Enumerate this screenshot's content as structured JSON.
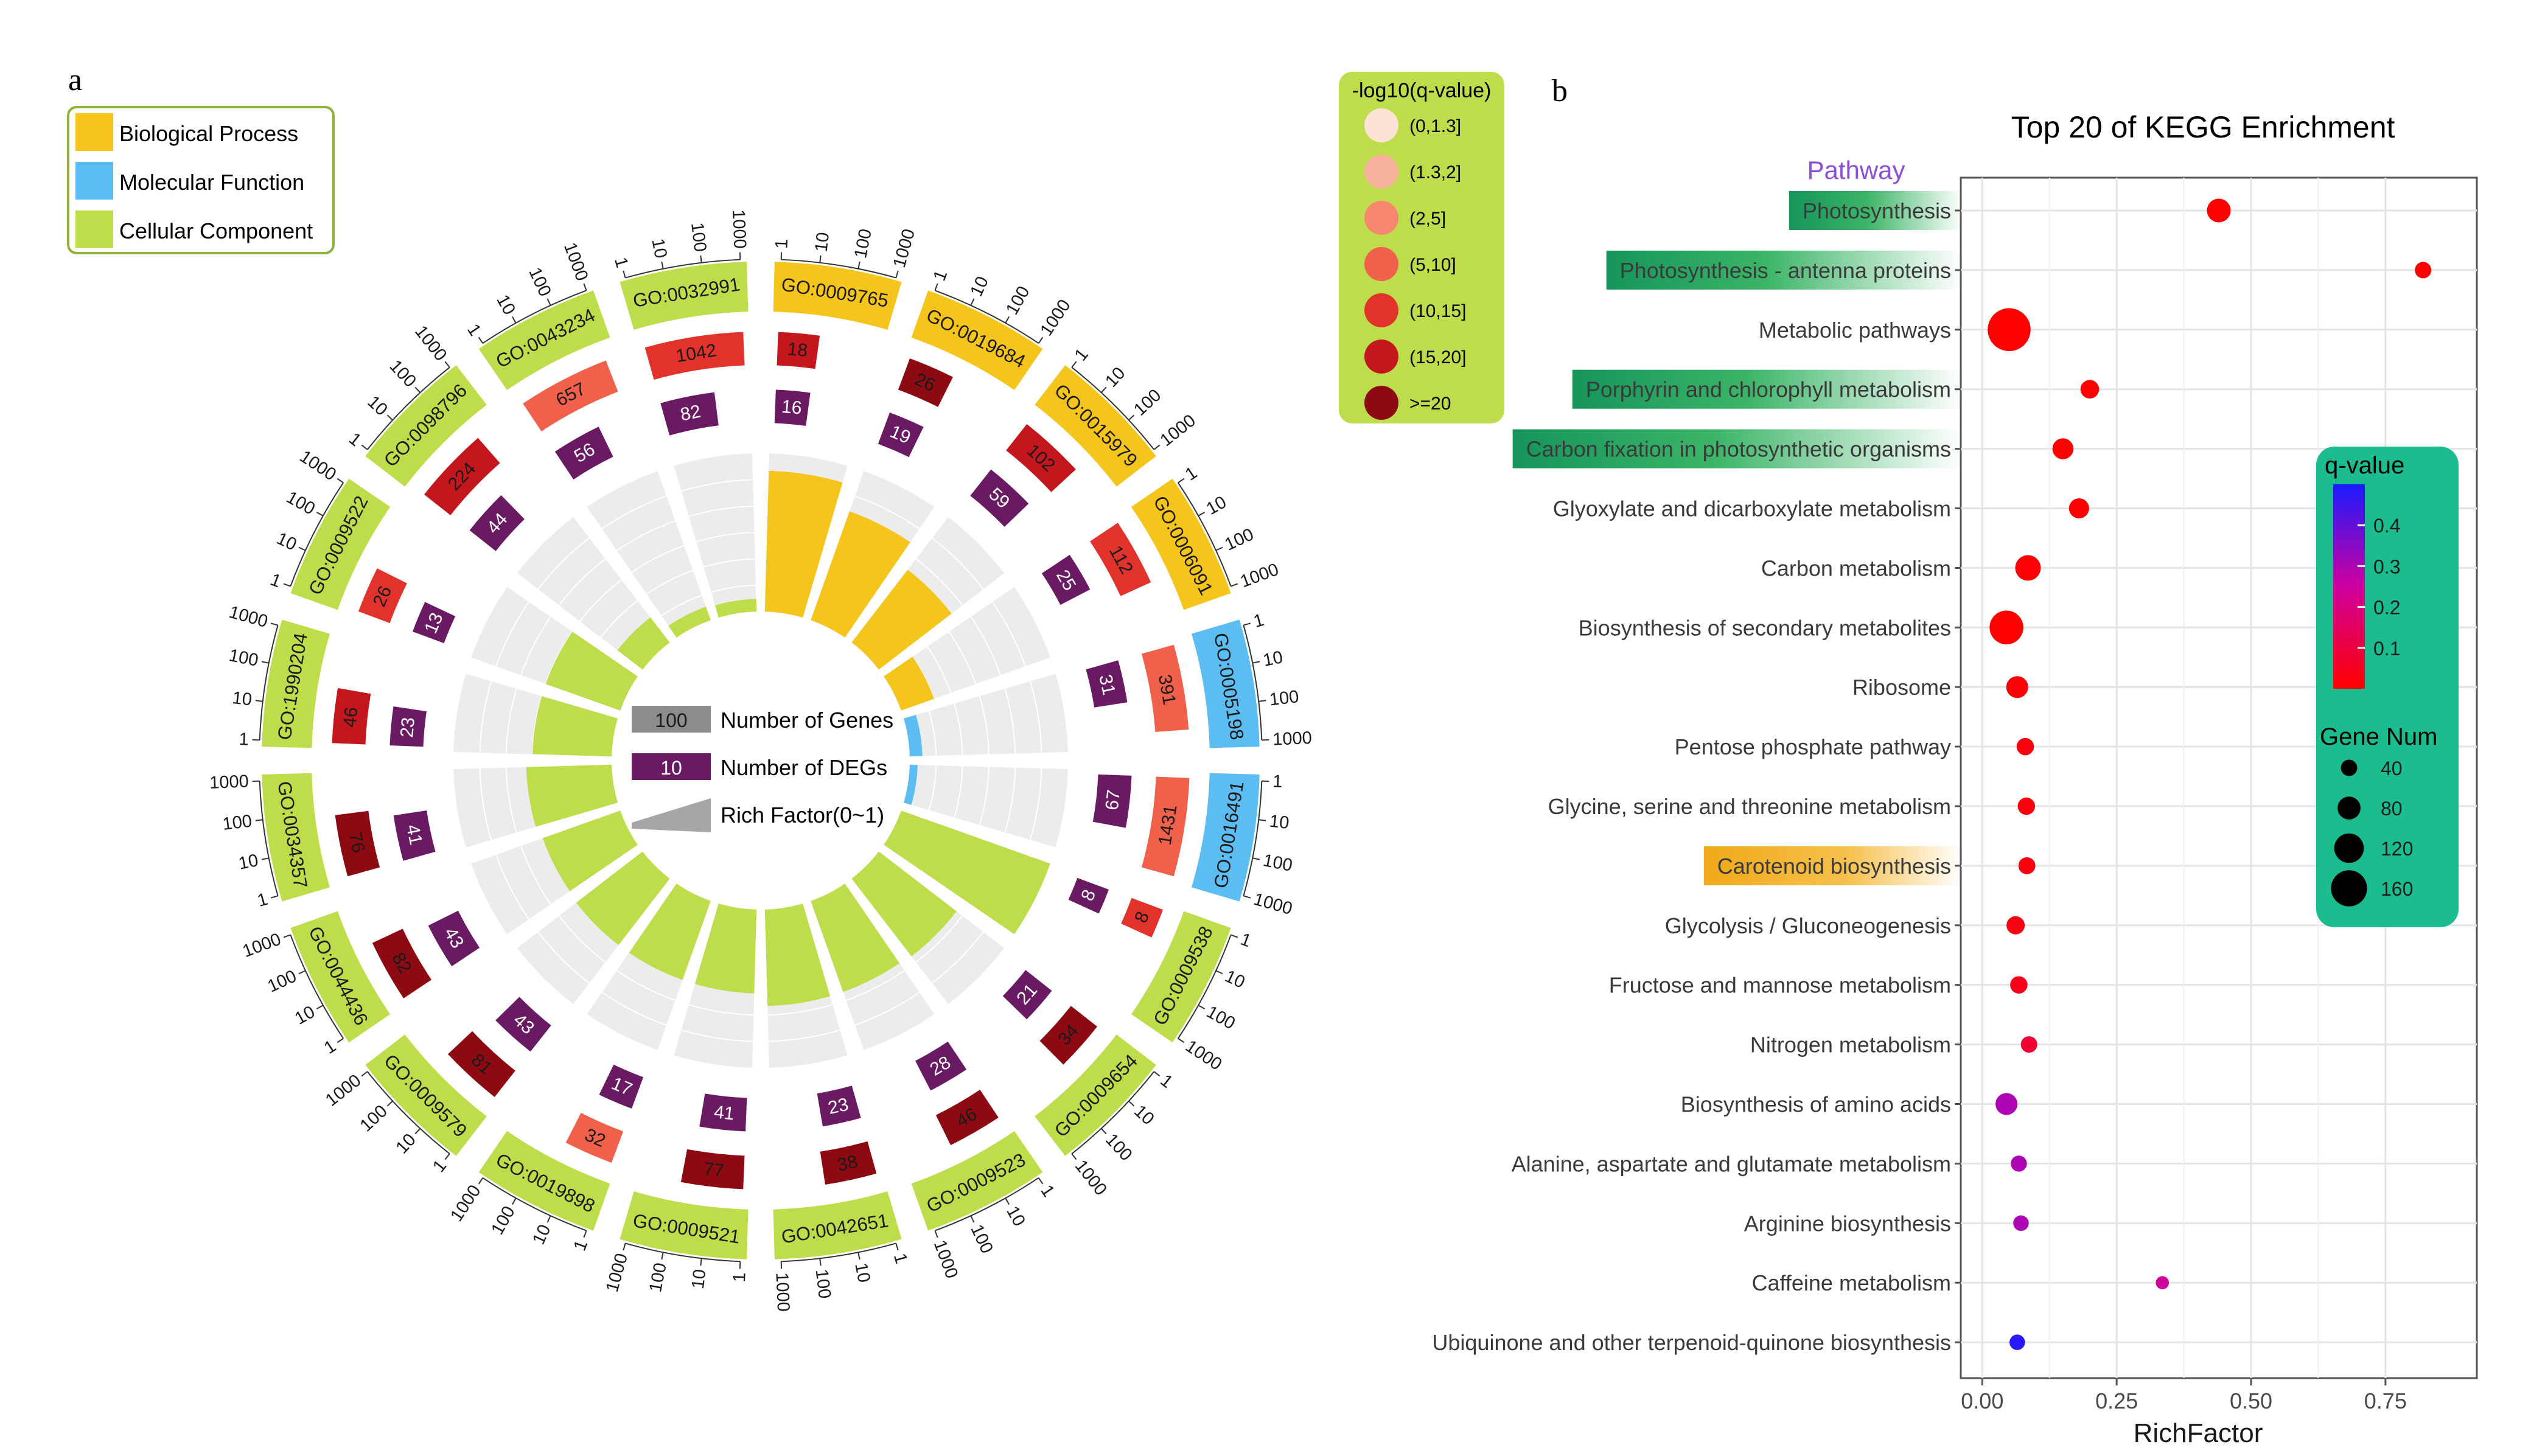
{
  "panel_a": {
    "letter": "a",
    "category_legend": [
      {
        "label": "Biological Process",
        "color": "#f6c51b"
      },
      {
        "label": "Molecular Function",
        "color": "#5bbdf2"
      },
      {
        "label": "Cellular Component",
        "color": "#bedd4b"
      }
    ],
    "center_legend": [
      {
        "sample": "100",
        "label": "Number of Genes"
      },
      {
        "sample": "10",
        "label": "Number of DEGs"
      },
      {
        "sample": "",
        "label": "Rich Factor(0~1)"
      }
    ],
    "qvalue_legend": {
      "title": "-log10(q-value)",
      "bins": [
        {
          "label": "(0,1.3]",
          "color": "#fce3d6"
        },
        {
          "label": "(1.3,2]",
          "color": "#f9b39c"
        },
        {
          "label": "(2,5]",
          "color": "#f7876f"
        },
        {
          "label": "(5,10]",
          "color": "#f1604b"
        },
        {
          "label": "(10,15]",
          "color": "#e1322c"
        },
        {
          "label": "(15,20]",
          "color": "#c3161d"
        },
        {
          "label": ">=20",
          "color": "#8e0a12"
        }
      ]
    },
    "axis_ticks": [
      "1",
      "10",
      "100",
      "1000"
    ],
    "deg_color": "#6a1a63",
    "chart_data": {
      "type": "circular_bar",
      "terms": [
        {
          "id": "GO:0009765",
          "category": "Biological Process",
          "genes": 18,
          "gene_color": "#c3161d",
          "degs": 16,
          "rich_factor": 0.89
        },
        {
          "id": "GO:0019684",
          "category": "Biological Process",
          "genes": 26,
          "gene_color": "#8e0a12",
          "degs": 19,
          "rich_factor": 0.73
        },
        {
          "id": "GO:0015979",
          "category": "Biological Process",
          "genes": 102,
          "gene_color": "#c3161d",
          "degs": 59,
          "rich_factor": 0.58
        },
        {
          "id": "GO:0006091",
          "category": "Biological Process",
          "genes": 112,
          "gene_color": "#e1322c",
          "degs": 25,
          "rich_factor": 0.22
        },
        {
          "id": "GO:0005198",
          "category": "Molecular Function",
          "genes": 391,
          "gene_color": "#f1604b",
          "degs": 31,
          "rich_factor": 0.08
        },
        {
          "id": "GO:0016491",
          "category": "Molecular Function",
          "genes": 1431,
          "gene_color": "#f1604b",
          "degs": 67,
          "rich_factor": 0.05
        },
        {
          "id": "GO:0009538",
          "category": "Cellular Component",
          "genes": 8,
          "gene_color": "#e1322c",
          "degs": 8,
          "rich_factor": 1.0
        },
        {
          "id": "GO:0009654",
          "category": "Cellular Component",
          "genes": 34,
          "gene_color": "#8e0a12",
          "degs": 21,
          "rich_factor": 0.62
        },
        {
          "id": "GO:0009523",
          "category": "Cellular Component",
          "genes": 46,
          "gene_color": "#8e0a12",
          "degs": 28,
          "rich_factor": 0.61
        },
        {
          "id": "GO:0042651",
          "category": "Cellular Component",
          "genes": 38,
          "gene_color": "#8e0a12",
          "degs": 23,
          "rich_factor": 0.61
        },
        {
          "id": "GO:0009521",
          "category": "Cellular Component",
          "genes": 77,
          "gene_color": "#8e0a12",
          "degs": 41,
          "rich_factor": 0.53
        },
        {
          "id": "GO:0019898",
          "category": "Cellular Component",
          "genes": 32,
          "gene_color": "#f1604b",
          "degs": 17,
          "rich_factor": 0.53
        },
        {
          "id": "GO:0009579",
          "category": "Cellular Component",
          "genes": 81,
          "gene_color": "#8e0a12",
          "degs": 43,
          "rich_factor": 0.53
        },
        {
          "id": "GO:0044436",
          "category": "Cellular Component",
          "genes": 82,
          "gene_color": "#8e0a12",
          "degs": 43,
          "rich_factor": 0.52
        },
        {
          "id": "GO:0034357",
          "category": "Cellular Component",
          "genes": 76,
          "gene_color": "#8e0a12",
          "degs": 41,
          "rich_factor": 0.54
        },
        {
          "id": "GO:1990204",
          "category": "Cellular Component",
          "genes": 46,
          "gene_color": "#c3161d",
          "degs": 23,
          "rich_factor": 0.5
        },
        {
          "id": "GO:0009522",
          "category": "Cellular Component",
          "genes": 26,
          "gene_color": "#e1322c",
          "degs": 13,
          "rich_factor": 0.5
        },
        {
          "id": "GO:0098796",
          "category": "Cellular Component",
          "genes": 224,
          "gene_color": "#c3161d",
          "degs": 44,
          "rich_factor": 0.2
        },
        {
          "id": "GO:0043234",
          "category": "Cellular Component",
          "genes": 657,
          "gene_color": "#f1604b",
          "degs": 56,
          "rich_factor": 0.09
        },
        {
          "id": "GO:0032991",
          "category": "Cellular Component",
          "genes": 1042,
          "gene_color": "#e1322c",
          "degs": 82,
          "rich_factor": 0.08
        }
      ]
    }
  },
  "panel_b": {
    "letter": "b",
    "chart_data": {
      "type": "scatter",
      "title": "Top 20 of KEGG Enrichment",
      "xlabel": "RichFactor",
      "ylabel": "Pathway",
      "xlim": [
        -0.04,
        0.92
      ],
      "xticks": [
        0.0,
        0.25,
        0.5,
        0.75
      ],
      "xtick_labels": [
        "0.00",
        "0.25",
        "0.50",
        "0.75"
      ],
      "grid": true,
      "pathways": [
        {
          "name": "Photosynthesis",
          "rich_factor": 0.44,
          "gene_num": 70,
          "q_value": 0.0,
          "highlight": "green"
        },
        {
          "name": "Photosynthesis - antenna proteins",
          "rich_factor": 0.82,
          "gene_num": 30,
          "q_value": 0.0,
          "highlight": "green"
        },
        {
          "name": "Metabolic pathways",
          "rich_factor": 0.05,
          "gene_num": 175,
          "q_value": 0.0,
          "highlight": ""
        },
        {
          "name": "Porphyrin and chlorophyll metabolism",
          "rich_factor": 0.2,
          "gene_num": 42,
          "q_value": 0.0,
          "highlight": "green"
        },
        {
          "name": "Carbon fixation in photosynthetic organisms",
          "rich_factor": 0.15,
          "gene_num": 55,
          "q_value": 0.0,
          "highlight": "green"
        },
        {
          "name": "Glyoxylate and dicarboxylate metabolism",
          "rich_factor": 0.18,
          "gene_num": 50,
          "q_value": 0.0,
          "highlight": ""
        },
        {
          "name": "Carbon metabolism",
          "rich_factor": 0.085,
          "gene_num": 80,
          "q_value": 0.01,
          "highlight": ""
        },
        {
          "name": "Biosynthesis of secondary metabolites",
          "rich_factor": 0.045,
          "gene_num": 125,
          "q_value": 0.0,
          "highlight": ""
        },
        {
          "name": "Ribosome",
          "rich_factor": 0.065,
          "gene_num": 60,
          "q_value": 0.01,
          "highlight": ""
        },
        {
          "name": "Pentose phosphate pathway",
          "rich_factor": 0.08,
          "gene_num": 35,
          "q_value": 0.02,
          "highlight": ""
        },
        {
          "name": "Glycine, serine and threonine metabolism",
          "rich_factor": 0.082,
          "gene_num": 35,
          "q_value": 0.02,
          "highlight": ""
        },
        {
          "name": "Carotenoid biosynthesis",
          "rich_factor": 0.083,
          "gene_num": 33,
          "q_value": 0.02,
          "highlight": "orange"
        },
        {
          "name": "Glycolysis / Gluconeogenesis",
          "rich_factor": 0.062,
          "gene_num": 40,
          "q_value": 0.03,
          "highlight": ""
        },
        {
          "name": "Fructose and mannose metabolism",
          "rich_factor": 0.068,
          "gene_num": 35,
          "q_value": 0.04,
          "highlight": ""
        },
        {
          "name": "Nitrogen metabolism",
          "rich_factor": 0.087,
          "gene_num": 30,
          "q_value": 0.08,
          "highlight": ""
        },
        {
          "name": "Biosynthesis of amino acids",
          "rich_factor": 0.045,
          "gene_num": 60,
          "q_value": 0.3,
          "highlight": ""
        },
        {
          "name": "Alanine, aspartate and glutamate metabolism",
          "rich_factor": 0.068,
          "gene_num": 28,
          "q_value": 0.3,
          "highlight": ""
        },
        {
          "name": "Arginine biosynthesis",
          "rich_factor": 0.072,
          "gene_num": 25,
          "q_value": 0.3,
          "highlight": ""
        },
        {
          "name": "Caffeine metabolism",
          "rich_factor": 0.335,
          "gene_num": 12,
          "q_value": 0.25,
          "highlight": ""
        },
        {
          "name": "Ubiquinone and other terpenoid-quinone biosynthesis",
          "rich_factor": 0.065,
          "gene_num": 25,
          "q_value": 0.48,
          "highlight": ""
        }
      ],
      "qvalue_legend": {
        "title": "q-value",
        "ticks": [
          0.4,
          0.3,
          0.2,
          0.1
        ],
        "range": [
          0,
          0.5
        ]
      },
      "size_legend": {
        "title": "Gene Num",
        "values": [
          40,
          80,
          120,
          160
        ]
      },
      "legend_box_color": "#1bbd8f"
    }
  }
}
